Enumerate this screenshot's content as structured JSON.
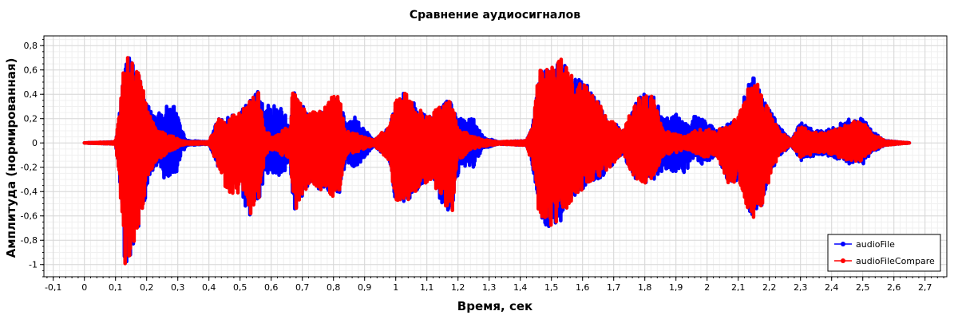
{
  "chart_data": {
    "type": "line",
    "title": "Сравнение аудиосигналов",
    "xlabel": "Время, сек",
    "ylabel": "Амплитуда (нормированная)",
    "xlim": [
      -0.13,
      2.77
    ],
    "ylim": [
      -1.1,
      0.88
    ],
    "x_ticks": [
      -0.1,
      0,
      0.1,
      0.2,
      0.3,
      0.4,
      0.5,
      0.6,
      0.7,
      0.8,
      0.9,
      1,
      1.1,
      1.2,
      1.3,
      1.4,
      1.5,
      1.6,
      1.7,
      1.8,
      1.9,
      2,
      2.1,
      2.2,
      2.3,
      2.4,
      2.5,
      2.6,
      2.7
    ],
    "x_tick_labels": [
      "-0,1",
      "0",
      "0,1",
      "0,2",
      "0,3",
      "0,4",
      "0,5",
      "0,6",
      "0,7",
      "0,8",
      "0,9",
      "1",
      "1,1",
      "1,2",
      "1,3",
      "1,4",
      "1,5",
      "1,6",
      "1,7",
      "1,8",
      "1,9",
      "2",
      "2,1",
      "2,2",
      "2,3",
      "2,4",
      "2,5",
      "2,6",
      "2,7"
    ],
    "y_ticks": [
      -1,
      -0.8,
      -0.6,
      -0.4,
      -0.2,
      0,
      0.2,
      0.4,
      0.6,
      0.8
    ],
    "y_tick_labels": [
      "-1",
      "-0,8",
      "-0,6",
      "-0,4",
      "-0,2",
      "0",
      "0,2",
      "0,4",
      "0,6",
      "0,8"
    ],
    "grid": true,
    "legend_position": "bottom-right",
    "series": [
      {
        "name": "audioFile",
        "color": "#0000ff",
        "x_range": [
          0,
          2.65
        ],
        "envelope": [
          [
            0.0,
            0.0,
            0.0
          ],
          [
            0.1,
            0.01,
            -0.01
          ],
          [
            0.115,
            0.3,
            -0.4
          ],
          [
            0.13,
            0.75,
            -1.0
          ],
          [
            0.15,
            0.7,
            -0.95
          ],
          [
            0.18,
            0.55,
            -0.65
          ],
          [
            0.21,
            0.28,
            -0.28
          ],
          [
            0.23,
            0.22,
            -0.22
          ],
          [
            0.26,
            0.3,
            -0.3
          ],
          [
            0.29,
            0.32,
            -0.3
          ],
          [
            0.31,
            0.12,
            -0.1
          ],
          [
            0.33,
            0.02,
            -0.02
          ],
          [
            0.4,
            0.01,
            -0.01
          ],
          [
            0.43,
            0.2,
            -0.2
          ],
          [
            0.46,
            0.22,
            -0.25
          ],
          [
            0.5,
            0.25,
            -0.45
          ],
          [
            0.53,
            0.35,
            -0.6
          ],
          [
            0.56,
            0.45,
            -0.5
          ],
          [
            0.58,
            0.32,
            -0.25
          ],
          [
            0.61,
            0.32,
            -0.25
          ],
          [
            0.64,
            0.28,
            -0.28
          ],
          [
            0.66,
            0.12,
            -0.12
          ],
          [
            0.67,
            0.5,
            -0.6
          ],
          [
            0.69,
            0.35,
            -0.5
          ],
          [
            0.72,
            0.25,
            -0.35
          ],
          [
            0.77,
            0.28,
            -0.4
          ],
          [
            0.8,
            0.42,
            -0.46
          ],
          [
            0.82,
            0.4,
            -0.42
          ],
          [
            0.84,
            0.14,
            -0.15
          ],
          [
            0.87,
            0.22,
            -0.22
          ],
          [
            0.9,
            0.12,
            -0.12
          ],
          [
            0.93,
            0.02,
            -0.02
          ],
          [
            0.98,
            0.15,
            -0.15
          ],
          [
            1.0,
            0.35,
            -0.5
          ],
          [
            1.03,
            0.42,
            -0.5
          ],
          [
            1.07,
            0.3,
            -0.38
          ],
          [
            1.11,
            0.22,
            -0.3
          ],
          [
            1.13,
            0.28,
            -0.4
          ],
          [
            1.16,
            0.36,
            -0.55
          ],
          [
            1.18,
            0.33,
            -0.6
          ],
          [
            1.2,
            0.2,
            -0.25
          ],
          [
            1.23,
            0.2,
            -0.18
          ],
          [
            1.25,
            0.2,
            -0.2
          ],
          [
            1.28,
            0.05,
            -0.05
          ],
          [
            1.33,
            0.01,
            -0.01
          ],
          [
            1.42,
            0.02,
            -0.02
          ],
          [
            1.44,
            0.15,
            -0.2
          ],
          [
            1.46,
            0.6,
            -0.6
          ],
          [
            1.49,
            0.62,
            -0.7
          ],
          [
            1.53,
            0.7,
            -0.65
          ],
          [
            1.57,
            0.55,
            -0.45
          ],
          [
            1.62,
            0.48,
            -0.35
          ],
          [
            1.66,
            0.3,
            -0.3
          ],
          [
            1.68,
            0.22,
            -0.22
          ],
          [
            1.73,
            0.1,
            -0.1
          ],
          [
            1.77,
            0.35,
            -0.3
          ],
          [
            1.8,
            0.42,
            -0.33
          ],
          [
            1.83,
            0.38,
            -0.3
          ],
          [
            1.86,
            0.2,
            -0.22
          ],
          [
            1.9,
            0.25,
            -0.25
          ],
          [
            1.93,
            0.15,
            -0.25
          ],
          [
            1.96,
            0.25,
            -0.12
          ],
          [
            1.99,
            0.2,
            -0.2
          ],
          [
            2.03,
            0.1,
            -0.1
          ],
          [
            2.07,
            0.16,
            -0.35
          ],
          [
            2.1,
            0.22,
            -0.3
          ],
          [
            2.13,
            0.5,
            -0.55
          ],
          [
            2.15,
            0.58,
            -0.62
          ],
          [
            2.18,
            0.35,
            -0.5
          ],
          [
            2.2,
            0.3,
            -0.3
          ],
          [
            2.23,
            0.15,
            -0.12
          ],
          [
            2.27,
            0.02,
            -0.02
          ],
          [
            2.3,
            0.18,
            -0.15
          ],
          [
            2.33,
            0.12,
            -0.12
          ],
          [
            2.38,
            0.1,
            -0.1
          ],
          [
            2.42,
            0.15,
            -0.15
          ],
          [
            2.46,
            0.2,
            -0.18
          ],
          [
            2.5,
            0.2,
            -0.18
          ],
          [
            2.53,
            0.1,
            -0.08
          ],
          [
            2.57,
            0.02,
            -0.02
          ],
          [
            2.65,
            0.0,
            0.0
          ]
        ]
      },
      {
        "name": "audioFileCompare",
        "color": "#ff0000",
        "x_range": [
          0,
          2.65
        ],
        "envelope": [
          [
            0.0,
            0.0,
            0.0
          ],
          [
            0.1,
            0.01,
            -0.01
          ],
          [
            0.115,
            0.3,
            -0.4
          ],
          [
            0.13,
            0.76,
            -1.0
          ],
          [
            0.15,
            0.72,
            -0.95
          ],
          [
            0.18,
            0.55,
            -0.65
          ],
          [
            0.21,
            0.25,
            -0.25
          ],
          [
            0.23,
            0.12,
            -0.15
          ],
          [
            0.26,
            0.08,
            -0.1
          ],
          [
            0.29,
            0.05,
            -0.05
          ],
          [
            0.31,
            0.02,
            -0.02
          ],
          [
            0.33,
            0.01,
            -0.01
          ],
          [
            0.4,
            0.01,
            -0.01
          ],
          [
            0.43,
            0.2,
            -0.2
          ],
          [
            0.46,
            0.22,
            -0.42
          ],
          [
            0.5,
            0.25,
            -0.45
          ],
          [
            0.53,
            0.35,
            -0.6
          ],
          [
            0.56,
            0.45,
            -0.5
          ],
          [
            0.58,
            0.1,
            -0.1
          ],
          [
            0.61,
            0.05,
            -0.05
          ],
          [
            0.64,
            0.12,
            -0.12
          ],
          [
            0.66,
            0.12,
            -0.12
          ],
          [
            0.67,
            0.5,
            -0.6
          ],
          [
            0.69,
            0.35,
            -0.5
          ],
          [
            0.72,
            0.25,
            -0.35
          ],
          [
            0.77,
            0.28,
            -0.4
          ],
          [
            0.8,
            0.42,
            -0.46
          ],
          [
            0.82,
            0.4,
            -0.42
          ],
          [
            0.84,
            0.1,
            -0.1
          ],
          [
            0.87,
            0.08,
            -0.08
          ],
          [
            0.9,
            0.05,
            -0.05
          ],
          [
            0.93,
            0.02,
            -0.02
          ],
          [
            0.98,
            0.15,
            -0.15
          ],
          [
            1.0,
            0.35,
            -0.5
          ],
          [
            1.03,
            0.42,
            -0.5
          ],
          [
            1.07,
            0.3,
            -0.38
          ],
          [
            1.11,
            0.22,
            -0.3
          ],
          [
            1.13,
            0.28,
            -0.4
          ],
          [
            1.16,
            0.36,
            -0.55
          ],
          [
            1.18,
            0.33,
            -0.6
          ],
          [
            1.2,
            0.12,
            -0.15
          ],
          [
            1.23,
            0.08,
            -0.08
          ],
          [
            1.25,
            0.05,
            -0.05
          ],
          [
            1.28,
            0.03,
            -0.03
          ],
          [
            1.33,
            0.01,
            -0.01
          ],
          [
            1.42,
            0.02,
            -0.02
          ],
          [
            1.44,
            0.15,
            -0.2
          ],
          [
            1.46,
            0.6,
            -0.6
          ],
          [
            1.49,
            0.62,
            -0.7
          ],
          [
            1.53,
            0.7,
            -0.65
          ],
          [
            1.57,
            0.55,
            -0.45
          ],
          [
            1.62,
            0.48,
            -0.35
          ],
          [
            1.66,
            0.3,
            -0.3
          ],
          [
            1.68,
            0.22,
            -0.22
          ],
          [
            1.73,
            0.1,
            -0.1
          ],
          [
            1.77,
            0.35,
            -0.3
          ],
          [
            1.8,
            0.42,
            -0.33
          ],
          [
            1.83,
            0.38,
            -0.3
          ],
          [
            1.86,
            0.1,
            -0.1
          ],
          [
            1.9,
            0.08,
            -0.08
          ],
          [
            1.93,
            0.05,
            -0.05
          ],
          [
            1.96,
            0.1,
            -0.08
          ],
          [
            1.99,
            0.12,
            -0.12
          ],
          [
            2.03,
            0.1,
            -0.1
          ],
          [
            2.07,
            0.16,
            -0.35
          ],
          [
            2.1,
            0.22,
            -0.3
          ],
          [
            2.13,
            0.5,
            -0.55
          ],
          [
            2.15,
            0.58,
            -0.62
          ],
          [
            2.18,
            0.35,
            -0.5
          ],
          [
            2.2,
            0.3,
            -0.3
          ],
          [
            2.23,
            0.12,
            -0.1
          ],
          [
            2.27,
            0.02,
            -0.02
          ],
          [
            2.3,
            0.15,
            -0.12
          ],
          [
            2.33,
            0.1,
            -0.1
          ],
          [
            2.38,
            0.08,
            -0.08
          ],
          [
            2.42,
            0.12,
            -0.12
          ],
          [
            2.46,
            0.18,
            -0.15
          ],
          [
            2.5,
            0.18,
            -0.15
          ],
          [
            2.53,
            0.08,
            -0.06
          ],
          [
            2.57,
            0.02,
            -0.02
          ],
          [
            2.65,
            0.0,
            0.0
          ]
        ]
      }
    ]
  }
}
